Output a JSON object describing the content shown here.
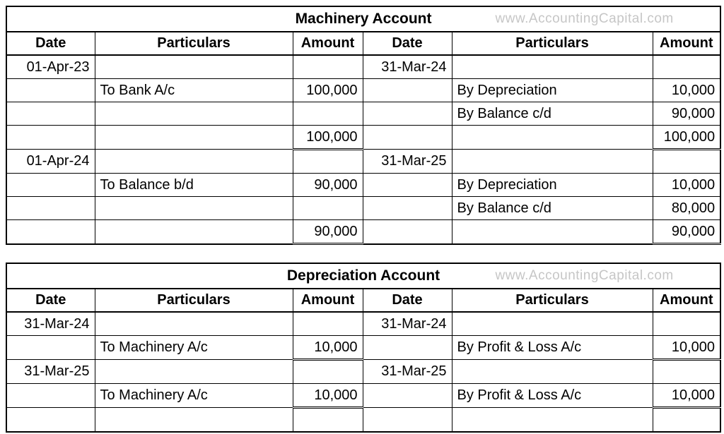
{
  "watermark": "www.AccountingCapital.com",
  "colors": {
    "border": "#000000",
    "text": "#000000",
    "watermark": "#c6c6c6",
    "background": "#ffffff"
  },
  "columns": [
    "Date",
    "Particulars",
    "Amount",
    "Date",
    "Particulars",
    "Amount"
  ],
  "tables": [
    {
      "title": "Machinery Account",
      "rows": [
        {
          "cells": [
            "01-Apr-23",
            "",
            "",
            "31-Mar-24",
            "",
            ""
          ]
        },
        {
          "cells": [
            "",
            "To Bank A/c",
            "100,000",
            "",
            "By Depreciation",
            "10,000"
          ]
        },
        {
          "cells": [
            "",
            "",
            "",
            "",
            "By Balance c/d",
            "90,000"
          ]
        },
        {
          "cells": [
            "",
            "",
            "100,000",
            "",
            "",
            "100,000"
          ],
          "total_cols": [
            2,
            5
          ]
        },
        {
          "cells": [
            "01-Apr-24",
            "",
            "",
            "31-Mar-25",
            "",
            ""
          ]
        },
        {
          "cells": [
            "",
            "To Balance b/d",
            "90,000",
            "",
            "By Depreciation",
            "10,000"
          ]
        },
        {
          "cells": [
            "",
            "",
            "",
            "",
            "By Balance c/d",
            "80,000"
          ]
        },
        {
          "cells": [
            "",
            "",
            "90,000",
            "",
            "",
            "90,000"
          ],
          "total_cols": [
            2,
            5
          ]
        }
      ]
    },
    {
      "title": "Depreciation Account",
      "rows": [
        {
          "cells": [
            "31-Mar-24",
            "",
            "",
            "31-Mar-24",
            "",
            ""
          ]
        },
        {
          "cells": [
            "",
            "To Machinery A/c",
            "10,000",
            "",
            "By Profit & Loss A/c",
            "10,000"
          ],
          "total_cols": [
            2,
            5
          ]
        },
        {
          "cells": [
            "31-Mar-25",
            "",
            "",
            "31-Mar-25",
            "",
            ""
          ]
        },
        {
          "cells": [
            "",
            "To Machinery A/c",
            "10,000",
            "",
            "By Profit & Loss A/c",
            "10,000"
          ],
          "total_cols": [
            2,
            5
          ]
        },
        {
          "cells": [
            "",
            "",
            "",
            "",
            "",
            ""
          ]
        }
      ]
    }
  ]
}
